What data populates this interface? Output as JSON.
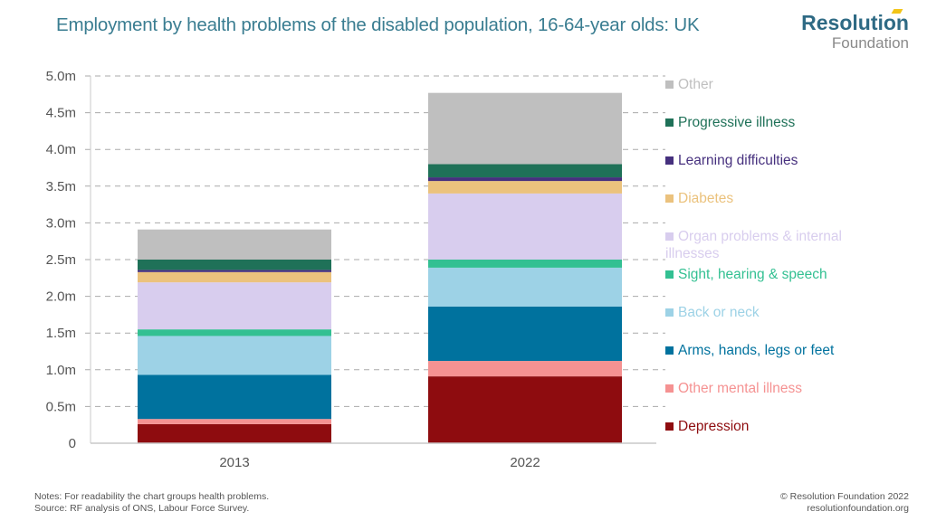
{
  "header": {
    "title": "Employment by health problems of the disabled population, 16-64-year olds: UK",
    "logo_line1": "Resolution",
    "logo_line2": "Foundation"
  },
  "footer": {
    "notes": "Notes: For readability the chart groups health problems.",
    "source": "Source: RF analysis of ONS, Labour Force Survey.",
    "copyright": "© Resolution Foundation 2022",
    "website": "resolutionfoundation.org"
  },
  "colors": {
    "title": "#3a7d91",
    "axis_text": "#555555",
    "grid": "#aaaaaa"
  },
  "chart_data": {
    "type": "bar",
    "stacked": true,
    "title": "Employment by health problems of the disabled population, 16-64-year olds: UK",
    "xlabel": "",
    "ylabel": "",
    "categories": [
      "2013",
      "2022"
    ],
    "ylim": [
      0,
      5.0
    ],
    "yticks": [
      0,
      0.5,
      1.0,
      1.5,
      2.0,
      2.5,
      3.0,
      3.5,
      4.0,
      4.5,
      5.0
    ],
    "ytick_labels": [
      "0",
      "0.5m",
      "1.0m",
      "1.5m",
      "2.0m",
      "2.5m",
      "3.0m",
      "3.5m",
      "4.0m",
      "4.5m",
      "5.0m"
    ],
    "grid": true,
    "legend_position": "right",
    "series": [
      {
        "name": "Depression",
        "color": "#8e0c0f",
        "values": [
          0.26,
          0.91
        ]
      },
      {
        "name": "Other mental illness",
        "color": "#f59292",
        "values": [
          0.07,
          0.21
        ]
      },
      {
        "name": "Arms, hands, legs or feet",
        "color": "#00729e",
        "values": [
          0.6,
          0.74
        ]
      },
      {
        "name": "Back or neck",
        "color": "#9dd2e6",
        "values": [
          0.53,
          0.53
        ]
      },
      {
        "name": "Sight, hearing & speech",
        "color": "#33c092",
        "values": [
          0.09,
          0.11
        ]
      },
      {
        "name": "Organ problems & internal illnesses",
        "color": "#d8cdee",
        "values": [
          0.64,
          0.9
        ]
      },
      {
        "name": "Diabetes",
        "color": "#ebc27d",
        "values": [
          0.14,
          0.17
        ]
      },
      {
        "name": "Learning difficulties",
        "color": "#46307e",
        "values": [
          0.03,
          0.05
        ]
      },
      {
        "name": "Progressive illness",
        "color": "#1f7158",
        "values": [
          0.14,
          0.18
        ]
      },
      {
        "name": "Other",
        "color": "#bfbfbf",
        "values": [
          0.41,
          0.97
        ]
      }
    ]
  }
}
